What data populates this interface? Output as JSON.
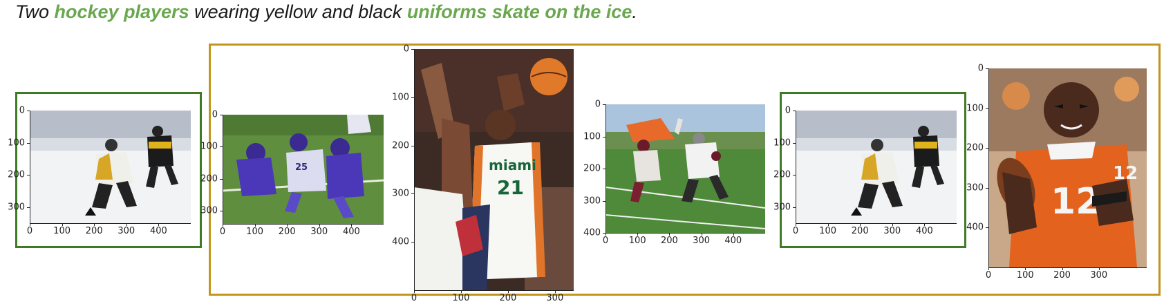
{
  "caption": {
    "parts": [
      {
        "text": "Two ",
        "highlight": false
      },
      {
        "text": "hockey players",
        "highlight": true
      },
      {
        "text": " wearing yellow and black ",
        "highlight": false
      },
      {
        "text": "uniforms skate on the ice",
        "highlight": true
      },
      {
        "text": ".",
        "highlight": false
      }
    ]
  },
  "colors": {
    "highlight_text": "#6aa84f",
    "frame_green": "#3f7a24",
    "frame_gold": "#c4951a"
  },
  "panels": [
    {
      "name": "hockey-players-1",
      "subject": "two hockey players on ice",
      "yticks": [
        "0",
        "100",
        "200",
        "300"
      ],
      "xticks": [
        "0",
        "100",
        "200",
        "300",
        "400"
      ]
    },
    {
      "name": "youth-football-purple",
      "subject": "youth football tackle",
      "yticks": [
        "0",
        "100",
        "200",
        "300"
      ],
      "xticks": [
        "0",
        "100",
        "200",
        "300",
        "400"
      ]
    },
    {
      "name": "basketball-miami-21",
      "subject": "basketball player shooting",
      "jersey_text": "miami",
      "jersey_number": "21",
      "yticks": [
        "0",
        "100",
        "200",
        "300",
        "400"
      ],
      "xticks": [
        "0",
        "100",
        "200",
        "300"
      ]
    },
    {
      "name": "football-game-field",
      "subject": "football game on field",
      "yticks": [
        "0",
        "100",
        "200",
        "300",
        "400"
      ],
      "xticks": [
        "0",
        "100",
        "200",
        "300",
        "400"
      ]
    },
    {
      "name": "hockey-players-2",
      "subject": "two hockey players on ice",
      "yticks": [
        "0",
        "100",
        "200",
        "300"
      ],
      "xticks": [
        "0",
        "100",
        "200",
        "300",
        "400"
      ]
    },
    {
      "name": "quarterback-orange-12",
      "subject": "quarterback in orange jersey",
      "jersey_number": "12",
      "yticks": [
        "0",
        "100",
        "200",
        "300",
        "400"
      ],
      "xticks": [
        "0",
        "100",
        "200",
        "300"
      ]
    }
  ]
}
